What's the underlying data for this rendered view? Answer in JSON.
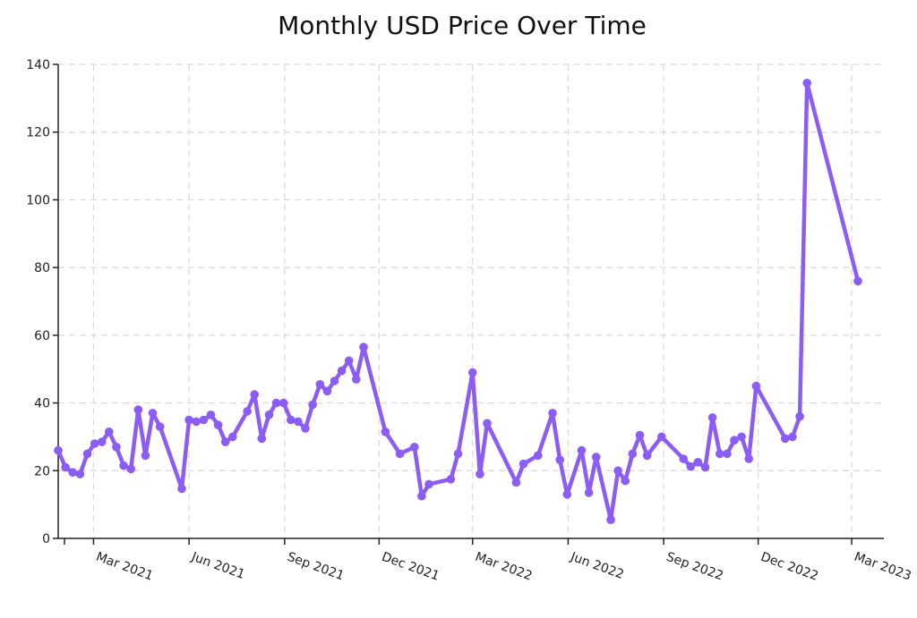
{
  "chart_data": {
    "type": "line",
    "title": "Monthly USD Price Over Time",
    "xlabel": "",
    "ylabel": "",
    "ylim": [
      0,
      140
    ],
    "y_ticks": [
      0,
      20,
      40,
      60,
      80,
      100,
      120,
      140
    ],
    "x_range": [
      "2021-01-26",
      "2023-04-01"
    ],
    "x_ticks": [
      {
        "date": "2021-03-01",
        "label": "Mar 2021"
      },
      {
        "date": "2021-06-01",
        "label": "Jun 2021"
      },
      {
        "date": "2021-09-01",
        "label": "Sep 2021"
      },
      {
        "date": "2021-12-01",
        "label": "Dec 2021"
      },
      {
        "date": "2022-03-01",
        "label": "Mar 2022"
      },
      {
        "date": "2022-06-01",
        "label": "Jun 2022"
      },
      {
        "date": "2022-09-01",
        "label": "Sep 2022"
      },
      {
        "date": "2022-12-01",
        "label": "Dec 2022"
      },
      {
        "date": "2023-03-01",
        "label": "Mar 2023"
      }
    ],
    "grid": true,
    "legend": "none",
    "line_color": "#8b5cf6",
    "series": [
      {
        "points": [
          [
            "2021-01-26",
            26
          ],
          [
            "2021-02-02",
            21
          ],
          [
            "2021-02-09",
            19.5
          ],
          [
            "2021-02-16",
            19
          ],
          [
            "2021-02-23",
            25
          ],
          [
            "2021-03-02",
            28
          ],
          [
            "2021-03-09",
            28.5
          ],
          [
            "2021-03-16",
            31.5
          ],
          [
            "2021-03-23",
            27
          ],
          [
            "2021-03-30",
            21.5
          ],
          [
            "2021-04-06",
            20.5
          ],
          [
            "2021-04-13",
            38
          ],
          [
            "2021-04-20",
            24.5
          ],
          [
            "2021-04-27",
            37
          ],
          [
            "2021-05-04",
            33
          ],
          [
            "2021-05-25",
            14.7
          ],
          [
            "2021-06-01",
            35
          ],
          [
            "2021-06-08",
            34.5
          ],
          [
            "2021-06-15",
            35
          ],
          [
            "2021-06-22",
            36.5
          ],
          [
            "2021-06-29",
            33.5
          ],
          [
            "2021-07-06",
            28.5
          ],
          [
            "2021-07-13",
            30
          ],
          [
            "2021-07-27",
            37.5
          ],
          [
            "2021-08-03",
            42.5
          ],
          [
            "2021-08-10",
            29.5
          ],
          [
            "2021-08-17",
            36.5
          ],
          [
            "2021-08-24",
            40
          ],
          [
            "2021-08-31",
            40
          ],
          [
            "2021-09-07",
            35
          ],
          [
            "2021-09-14",
            34.5
          ],
          [
            "2021-09-21",
            32.5
          ],
          [
            "2021-09-28",
            39.5
          ],
          [
            "2021-10-05",
            45.5
          ],
          [
            "2021-10-12",
            43.5
          ],
          [
            "2021-10-19",
            46.5
          ],
          [
            "2021-10-26",
            49.5
          ],
          [
            "2021-11-02",
            52.5
          ],
          [
            "2021-11-09",
            47
          ],
          [
            "2021-11-16",
            56.5
          ],
          [
            "2021-12-07",
            31.5
          ],
          [
            "2021-12-21",
            25
          ],
          [
            "2022-01-04",
            27
          ],
          [
            "2022-01-11",
            12.5
          ],
          [
            "2022-01-18",
            16
          ],
          [
            "2022-02-08",
            17.5
          ],
          [
            "2022-02-15",
            25
          ],
          [
            "2022-03-01",
            49
          ],
          [
            "2022-03-08",
            19
          ],
          [
            "2022-03-15",
            34
          ],
          [
            "2022-04-12",
            16.5
          ],
          [
            "2022-04-19",
            22
          ],
          [
            "2022-05-03",
            24.5
          ],
          [
            "2022-05-17",
            37
          ],
          [
            "2022-05-24",
            23.2
          ],
          [
            "2022-05-31",
            13
          ],
          [
            "2022-06-14",
            26
          ],
          [
            "2022-06-21",
            13.5
          ],
          [
            "2022-06-28",
            24
          ],
          [
            "2022-07-12",
            5.5
          ],
          [
            "2022-07-19",
            20
          ],
          [
            "2022-07-26",
            17
          ],
          [
            "2022-08-02",
            25
          ],
          [
            "2022-08-09",
            30.5
          ],
          [
            "2022-08-16",
            24.5
          ],
          [
            "2022-08-30",
            30
          ],
          [
            "2022-09-20",
            23.5
          ],
          [
            "2022-09-27",
            21.2
          ],
          [
            "2022-10-04",
            22.5
          ],
          [
            "2022-10-11",
            21
          ],
          [
            "2022-10-18",
            35.7
          ],
          [
            "2022-10-25",
            25
          ],
          [
            "2022-11-01",
            25
          ],
          [
            "2022-11-08",
            29
          ],
          [
            "2022-11-15",
            30
          ],
          [
            "2022-11-22",
            23.5
          ],
          [
            "2022-11-29",
            45
          ],
          [
            "2022-12-27",
            29.5
          ],
          [
            "2023-01-03",
            30
          ],
          [
            "2023-01-10",
            36
          ],
          [
            "2023-01-17",
            134.5
          ],
          [
            "2023-03-07",
            76
          ]
        ]
      }
    ]
  }
}
